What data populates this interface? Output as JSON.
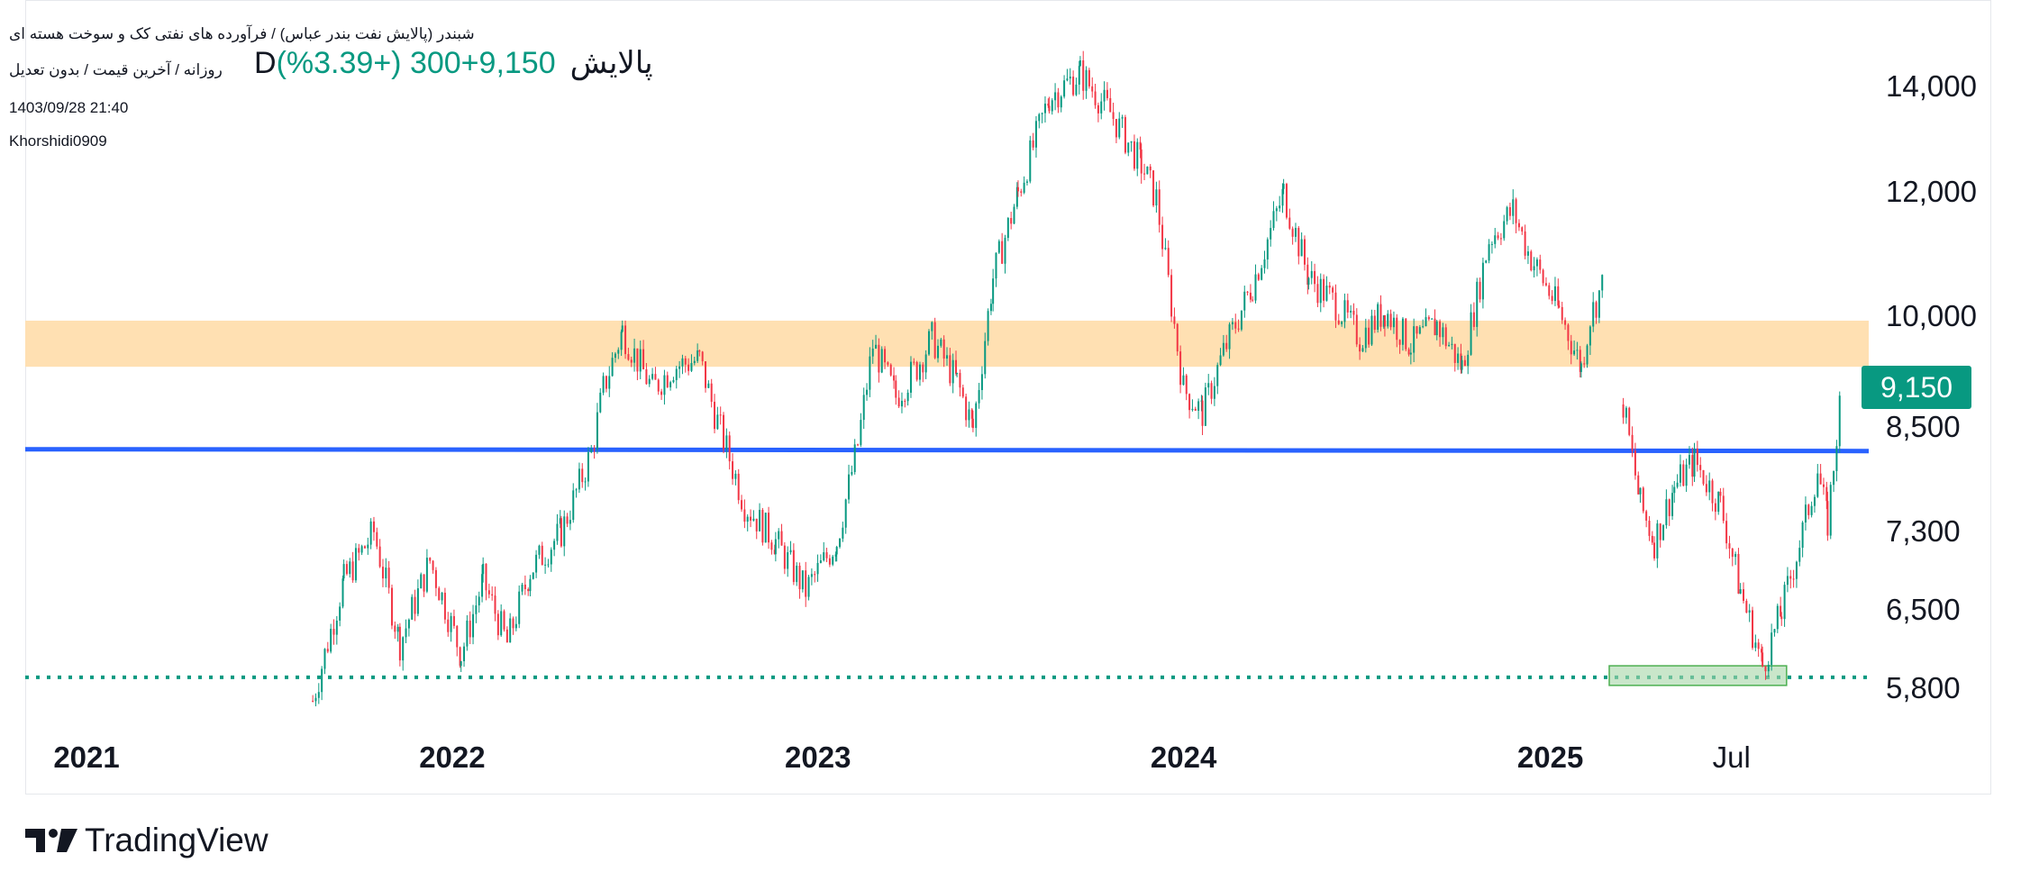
{
  "header": {
    "symbol_line": "شبندر (پالایش نفت بندر عباس) / فرآورده های نفتی کک و سوخت هسته ای",
    "interval_line": "روزانه / آخرین قیمت / بدون تعدیل",
    "datetime": "1403/09/28 21:40",
    "author": "Khorshidi0909",
    "name": "Dپالایش",
    "last_price": "9,150",
    "change": "+300 (+3.39%)"
  },
  "price_badge": "9,150",
  "footer": {
    "brand": "TradingView"
  },
  "colors": {
    "up": "#089981",
    "down": "#f23645",
    "zone": "#ffe0b2",
    "support_line": "#2962ff",
    "dotted_line": "#089981",
    "green_box": "#a5d6a7"
  },
  "chart_data": {
    "type": "candlestick",
    "title": "",
    "y_scale": "log",
    "ylim": [
      5500,
      15100
    ],
    "xlim": [
      "2020-11-01",
      "2025-11-15"
    ],
    "y_ticks": [
      {
        "value": 14000,
        "label": "14,000"
      },
      {
        "value": 12000,
        "label": "12,000"
      },
      {
        "value": 10000,
        "label": "10,000"
      },
      {
        "value": 8500,
        "label": "8,500"
      },
      {
        "value": 7300,
        "label": "7,300"
      },
      {
        "value": 6500,
        "label": "6,500"
      },
      {
        "value": 5800,
        "label": "5,800"
      }
    ],
    "x_ticks": [
      {
        "date": "2021-01-01",
        "label": "2021"
      },
      {
        "date": "2022-01-01",
        "label": "2022"
      },
      {
        "date": "2023-01-01",
        "label": "2023"
      },
      {
        "date": "2024-01-01",
        "label": "2024"
      },
      {
        "date": "2025-01-01",
        "label": "2025"
      },
      {
        "date": "2025-07-01",
        "label": "Jul"
      }
    ],
    "price_path": [
      [
        "2021-08-15",
        5700
      ],
      [
        "2021-09-15",
        6800
      ],
      [
        "2021-10-15",
        7300
      ],
      [
        "2021-11-10",
        6200
      ],
      [
        "2021-12-10",
        7000
      ],
      [
        "2022-01-10",
        6100
      ],
      [
        "2022-02-01",
        6800
      ],
      [
        "2022-02-25",
        6200
      ],
      [
        "2022-03-20",
        6900
      ],
      [
        "2022-04-20",
        7300
      ],
      [
        "2022-05-20",
        8200
      ],
      [
        "2022-06-01",
        9000
      ],
      [
        "2022-06-20",
        9800
      ],
      [
        "2022-07-20",
        9000
      ],
      [
        "2022-08-10",
        9300
      ],
      [
        "2022-09-05",
        9400
      ],
      [
        "2022-09-20",
        8700
      ],
      [
        "2022-10-20",
        7600
      ],
      [
        "2022-11-20",
        7200
      ],
      [
        "2022-12-20",
        6700
      ],
      [
        "2023-01-20",
        7200
      ],
      [
        "2023-02-10",
        8300
      ],
      [
        "2023-02-25",
        9600
      ],
      [
        "2023-03-20",
        8900
      ],
      [
        "2023-04-10",
        9300
      ],
      [
        "2023-04-25",
        9700
      ],
      [
        "2023-05-20",
        9100
      ],
      [
        "2023-06-05",
        8500
      ],
      [
        "2023-06-25",
        10600
      ],
      [
        "2023-07-20",
        12000
      ],
      [
        "2023-08-20",
        13800
      ],
      [
        "2023-09-20",
        14300
      ],
      [
        "2023-10-20",
        13500
      ],
      [
        "2023-11-20",
        12500
      ],
      [
        "2023-12-05",
        11900
      ],
      [
        "2024-01-01",
        9000
      ],
      [
        "2024-01-20",
        8700
      ],
      [
        "2024-02-10",
        9500
      ],
      [
        "2024-03-10",
        10500
      ],
      [
        "2024-04-10",
        12000
      ],
      [
        "2024-05-05",
        10600
      ],
      [
        "2024-06-01",
        10200
      ],
      [
        "2024-06-25",
        9700
      ],
      [
        "2024-07-20",
        10100
      ],
      [
        "2024-08-15",
        9600
      ],
      [
        "2024-09-10",
        9900
      ],
      [
        "2024-10-05",
        9300
      ],
      [
        "2024-11-01",
        11200
      ],
      [
        "2024-11-25",
        11700
      ],
      [
        "2024-12-10",
        11000
      ],
      [
        "2025-01-10",
        10100
      ],
      [
        "2025-02-01",
        9300
      ],
      [
        "2025-02-10",
        10000
      ],
      [
        "2025-02-25",
        10600
      ]
    ],
    "price_path_after_gap": [
      [
        "2025-03-15",
        8800
      ],
      [
        "2025-04-01",
        7600
      ],
      [
        "2025-04-15",
        7200
      ],
      [
        "2025-05-05",
        7800
      ],
      [
        "2025-05-25",
        8100
      ],
      [
        "2025-06-20",
        7600
      ],
      [
        "2025-07-10",
        6700
      ],
      [
        "2025-08-01",
        6000
      ],
      [
        "2025-08-20",
        6500
      ],
      [
        "2025-09-10",
        7300
      ],
      [
        "2025-09-25",
        8000
      ],
      [
        "2025-10-05",
        7400
      ],
      [
        "2025-10-20",
        9150
      ]
    ],
    "resistance_zone": {
      "from": 9300,
      "to": 9950,
      "x_start": "2020-11-01",
      "x_end": "2025-11-15"
    },
    "support_line": {
      "value": 8230,
      "x_start": "2020-11-01",
      "x_end": "2025-11-15"
    },
    "dotted_line": {
      "value": 5900,
      "x_start": "2020-11-01",
      "x_end": "2025-11-15"
    },
    "demand_box": {
      "from": 5830,
      "to": 6000,
      "x_start": "2025-03-01",
      "x_end": "2025-08-25"
    }
  }
}
